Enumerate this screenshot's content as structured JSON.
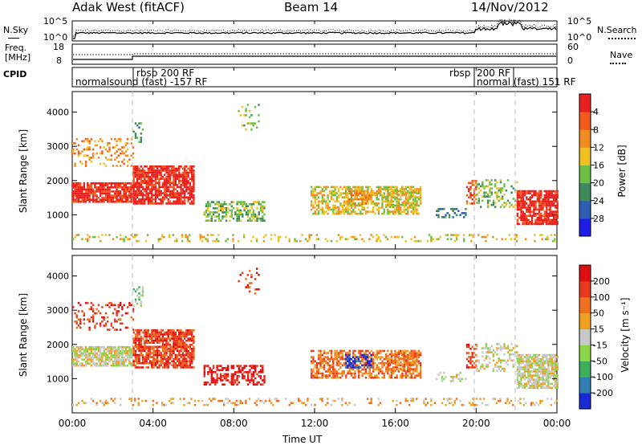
{
  "header": {
    "title": "Adak West (fitACF)",
    "beam": "Beam 14",
    "date": "14/Nov/2012"
  },
  "noise_panel": {
    "left_label": "N.Sky",
    "left_ticks": [
      "10^5",
      "10^0"
    ],
    "right_label": "N.Search",
    "right_ticks": [
      "10^5",
      "10^0"
    ]
  },
  "freq_panel": {
    "left_label_1": "Freq.",
    "left_label_2": "[MHz]",
    "left_ticks": [
      "18",
      "8"
    ],
    "right_label": "Nave",
    "right_ticks": [
      "60",
      "0"
    ]
  },
  "cpid_panel": {
    "label": "CPID",
    "segments": [
      "normalsound (fast) -157 RF",
      "rbsp 200 RF",
      "rbsp",
      "200 RF",
      "normal (fast) 151 RF"
    ]
  },
  "chart_data": [
    {
      "type": "heatmap",
      "name": "power",
      "ylabel": "Slant Range [km]",
      "yticks": [
        "1000",
        "2000",
        "3000",
        "4000"
      ],
      "colorbar_label": "Power [dB]",
      "colorbar_ticks": [
        "4",
        "8",
        "12",
        "16",
        "20",
        "24",
        "28"
      ],
      "colorbar_colors": [
        "#1e1ee6",
        "#2e5fb4",
        "#3f8a5a",
        "#6cbe45",
        "#f0c020",
        "#f08c20",
        "#f25a1e",
        "#e8201e"
      ]
    },
    {
      "type": "heatmap",
      "name": "velocity",
      "ylabel": "Slant Range [km]",
      "yticks": [
        "1000",
        "2000",
        "3000",
        "4000"
      ],
      "colorbar_label": "Velocity [m s⁻¹]",
      "colorbar_ticks": [
        "200",
        "100",
        "50",
        "15",
        "-15",
        "-50",
        "-100",
        "-200"
      ],
      "colorbar_colors": [
        "#1a2ad6",
        "#2f7fb0",
        "#3fae5a",
        "#8cd64a",
        "#c8c8c8",
        "#f0a020",
        "#f07020",
        "#e83a1e",
        "#e00e0e"
      ]
    }
  ],
  "x_axis": {
    "ticks": [
      "00:00",
      "04:00",
      "08:00",
      "12:00",
      "16:00",
      "20:00",
      "00:00"
    ],
    "label": "Time UT"
  }
}
